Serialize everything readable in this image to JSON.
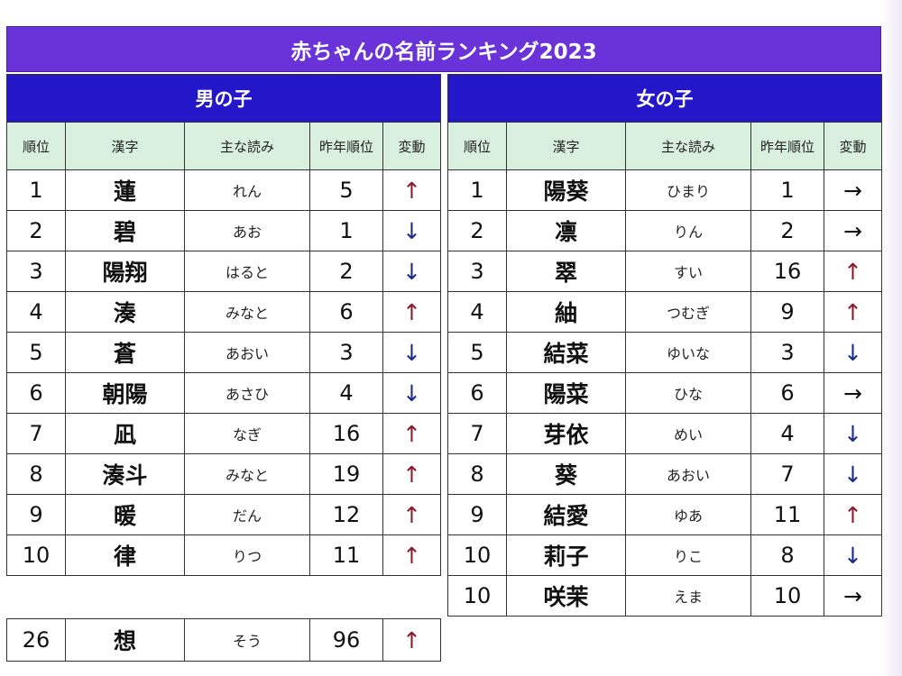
{
  "title": "赤ちゃんの名前ランキング2023",
  "columns": [
    "順位",
    "漢字",
    "主な読み",
    "昨年順位",
    "変動"
  ],
  "boys": {
    "heading": "男の子",
    "rows": [
      {
        "rank": "1",
        "kanji": "蓮",
        "reading": "れん",
        "last": "5",
        "change": "↑",
        "dir": "up"
      },
      {
        "rank": "2",
        "kanji": "碧",
        "reading": "あお",
        "last": "1",
        "change": "↓",
        "dir": "down"
      },
      {
        "rank": "3",
        "kanji": "陽翔",
        "reading": "はると",
        "last": "2",
        "change": "↓",
        "dir": "down"
      },
      {
        "rank": "4",
        "kanji": "湊",
        "reading": "みなと",
        "last": "6",
        "change": "↑",
        "dir": "up"
      },
      {
        "rank": "5",
        "kanji": "蒼",
        "reading": "あおい",
        "last": "3",
        "change": "↓",
        "dir": "down"
      },
      {
        "rank": "6",
        "kanji": "朝陽",
        "reading": "あさひ",
        "last": "4",
        "change": "↓",
        "dir": "down"
      },
      {
        "rank": "7",
        "kanji": "凪",
        "reading": "なぎ",
        "last": "16",
        "change": "↑",
        "dir": "up"
      },
      {
        "rank": "8",
        "kanji": "湊斗",
        "reading": "みなと",
        "last": "19",
        "change": "↑",
        "dir": "up"
      },
      {
        "rank": "9",
        "kanji": "暖",
        "reading": "だん",
        "last": "12",
        "change": "↑",
        "dir": "up"
      },
      {
        "rank": "10",
        "kanji": "律",
        "reading": "りつ",
        "last": "11",
        "change": "↑",
        "dir": "up"
      }
    ],
    "extra": {
      "rank": "26",
      "kanji": "想",
      "reading": "そう",
      "last": "96",
      "change": "↑",
      "dir": "up"
    }
  },
  "girls": {
    "heading": "女の子",
    "rows": [
      {
        "rank": "1",
        "kanji": "陽葵",
        "reading": "ひまり",
        "last": "1",
        "change": "→",
        "dir": "flat"
      },
      {
        "rank": "2",
        "kanji": "凛",
        "reading": "りん",
        "last": "2",
        "change": "→",
        "dir": "flat"
      },
      {
        "rank": "3",
        "kanji": "翠",
        "reading": "すい",
        "last": "16",
        "change": "↑",
        "dir": "up"
      },
      {
        "rank": "4",
        "kanji": "紬",
        "reading": "つむぎ",
        "last": "9",
        "change": "↑",
        "dir": "up"
      },
      {
        "rank": "5",
        "kanji": "結菜",
        "reading": "ゆいな",
        "last": "3",
        "change": "↓",
        "dir": "down"
      },
      {
        "rank": "6",
        "kanji": "陽菜",
        "reading": "ひな",
        "last": "6",
        "change": "→",
        "dir": "flat"
      },
      {
        "rank": "7",
        "kanji": "芽依",
        "reading": "めい",
        "last": "4",
        "change": "↓",
        "dir": "down"
      },
      {
        "rank": "8",
        "kanji": "葵",
        "reading": "あおい",
        "last": "7",
        "change": "↓",
        "dir": "down"
      },
      {
        "rank": "9",
        "kanji": "結愛",
        "reading": "ゆあ",
        "last": "11",
        "change": "↑",
        "dir": "up"
      },
      {
        "rank": "10",
        "kanji": "莉子",
        "reading": "りこ",
        "last": "8",
        "change": "↓",
        "dir": "down"
      },
      {
        "rank": "10",
        "kanji": "咲茉",
        "reading": "えま",
        "last": "10",
        "change": "→",
        "dir": "flat"
      }
    ]
  },
  "colors": {
    "title_bg": "#6a33d9",
    "group_header_bg": "#2317c9",
    "column_header_bg": "#daf0de",
    "up_arrow": "#8a1a2c",
    "down_arrow": "#1a2a8a"
  }
}
